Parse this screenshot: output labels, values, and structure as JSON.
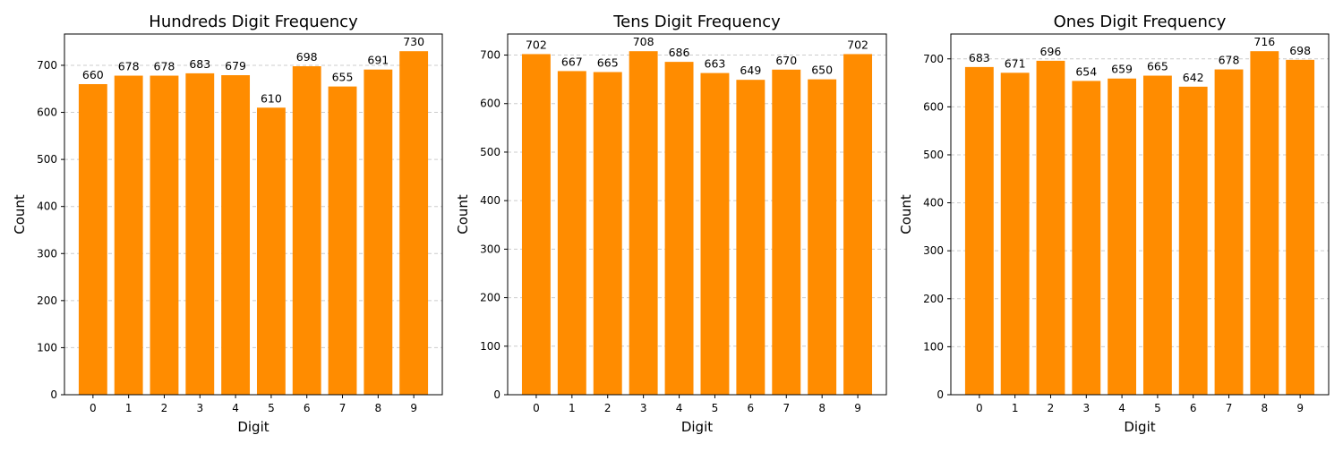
{
  "colors": {
    "bar": "#ff8c00",
    "grid": "#cccccc",
    "axis": "#000000"
  },
  "chart_data": [
    {
      "type": "bar",
      "title": "Hundreds Digit Frequency",
      "xlabel": "Digit",
      "ylabel": "Count",
      "categories": [
        "0",
        "1",
        "2",
        "3",
        "4",
        "5",
        "6",
        "7",
        "8",
        "9"
      ],
      "values": [
        660,
        678,
        678,
        683,
        679,
        610,
        698,
        655,
        691,
        730
      ],
      "ylim": [
        0,
        766.5
      ],
      "yticks": [
        0,
        100,
        200,
        300,
        400,
        500,
        600,
        700
      ],
      "grid": "y-dashed",
      "bar_color": "#ff8c00",
      "data_labels": true
    },
    {
      "type": "bar",
      "title": "Tens Digit Frequency",
      "xlabel": "Digit",
      "ylabel": "Count",
      "categories": [
        "0",
        "1",
        "2",
        "3",
        "4",
        "5",
        "6",
        "7",
        "8",
        "9"
      ],
      "values": [
        702,
        667,
        665,
        708,
        686,
        663,
        649,
        670,
        650,
        702
      ],
      "ylim": [
        0,
        743.4
      ],
      "yticks": [
        0,
        100,
        200,
        300,
        400,
        500,
        600,
        700
      ],
      "grid": "y-dashed",
      "bar_color": "#ff8c00",
      "data_labels": true
    },
    {
      "type": "bar",
      "title": "Ones Digit Frequency",
      "xlabel": "Digit",
      "ylabel": "Count",
      "categories": [
        "0",
        "1",
        "2",
        "3",
        "4",
        "5",
        "6",
        "7",
        "8",
        "9"
      ],
      "values": [
        683,
        671,
        696,
        654,
        659,
        665,
        642,
        678,
        716,
        698
      ],
      "ylim": [
        0,
        751.8
      ],
      "yticks": [
        0,
        100,
        200,
        300,
        400,
        500,
        600,
        700
      ],
      "grid": "y-dashed",
      "bar_color": "#ff8c00",
      "data_labels": true
    }
  ]
}
